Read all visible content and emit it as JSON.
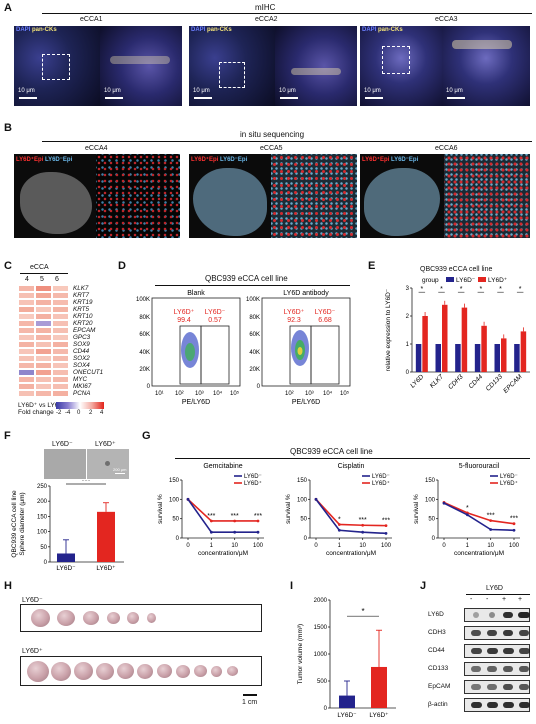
{
  "A": {
    "label": "A",
    "header": "mIHC",
    "samples": [
      "eCCA1",
      "eCCA2",
      "eCCA3"
    ],
    "stain_dapi": "DAPI",
    "stain_marker": "pan-CKs",
    "scalebar": "10 μm"
  },
  "B": {
    "label": "B",
    "header": "in situ sequencing",
    "samples": [
      "eCCA4",
      "eCCA5",
      "eCCA6"
    ],
    "legend_pos": "LY6D⁺Epi",
    "legend_neg": "LY6D⁻Epi"
  },
  "C": {
    "label": "C",
    "header": "eCCA",
    "cols": [
      "4",
      "5",
      "6"
    ],
    "genes": [
      "KLK7",
      "KRT7",
      "KRT19",
      "KRT5",
      "KRT10",
      "KRT20",
      "EPCAM",
      "GPC3",
      "SOX9",
      "CD44",
      "SOX2",
      "SOX4",
      "ONECUT1",
      "MYC",
      "MKI67",
      "PCNA"
    ],
    "legend_title": "LY6D⁺ vs LY6D⁻",
    "legend_subtitle": "Fold change",
    "legend_ticks": [
      "-2",
      "-4",
      "0",
      "2",
      "4"
    ]
  },
  "D": {
    "label": "D",
    "header": "QBC939 eCCA cell line",
    "panels": [
      {
        "title": "Blank",
        "pos_label": "LY6D⁺",
        "neg_label": "LY6D⁻",
        "pos_pct": "99.4",
        "neg_pct": "0.57"
      },
      {
        "title": "LY6D antibody",
        "pos_label": "LY6D⁺",
        "neg_label": "LY6D⁻",
        "pos_pct": "92.3",
        "neg_pct": "6.68"
      }
    ],
    "y_ticks": [
      "0",
      "20K",
      "40K",
      "60K",
      "80K",
      "100K"
    ],
    "x_ticks": [
      "10²",
      "10³",
      "10⁴",
      "10⁵"
    ],
    "x_ticks_left": [
      "10¹",
      "10²",
      "10³",
      "10⁴",
      "10⁵"
    ],
    "y_label": "SSC-A",
    "x_label": "PE/LY6D"
  },
  "E": {
    "label": "E",
    "header": "QBC939 eCCA cell line",
    "legend_title": "group",
    "legend_neg": "LY6D⁻",
    "legend_pos": "LY6D⁺",
    "y_label": "relative expression to LY6D⁻",
    "colors": {
      "neg": "#23238c",
      "pos": "#e32620"
    }
  },
  "F": {
    "label": "F",
    "img_left": "LY6D⁻",
    "img_right": "LY6D⁺",
    "sig": "***",
    "y_label_1": "QBC939 eCCA cell line",
    "y_label_2": "Sphere diameter (μm)",
    "scalebar": "200 μm"
  },
  "G": {
    "label": "G",
    "header": "QBC939 eCCA cell line",
    "y_label": "survival %",
    "x_label": "concentration/μM",
    "legend_neg": "LY6D⁻",
    "legend_pos": "LY6D⁺"
  },
  "H": {
    "label": "H",
    "row_neg": "LY6D⁻",
    "row_pos": "LY6D⁺",
    "scalebar": "1 cm"
  },
  "I": {
    "label": "I",
    "y_label": "Tumor volume (mm³)",
    "sig": "*"
  },
  "J": {
    "label": "J",
    "header": "LY6D",
    "lane_signs": [
      "-",
      "-",
      "+",
      "+"
    ],
    "proteins": [
      "LY6D",
      "CDH3",
      "CD44",
      "CD133",
      "EpCAM",
      "β-actin"
    ]
  },
  "chart_data": [
    {
      "id": "E",
      "type": "bar",
      "categories": [
        "LY6D",
        "KLK7",
        "CDH3",
        "CD44",
        "CD133",
        "EPCAM"
      ],
      "series": [
        {
          "name": "LY6D⁻",
          "values": [
            1.0,
            1.0,
            1.0,
            1.0,
            1.0,
            1.0
          ]
        },
        {
          "name": "LY6D⁺",
          "values": [
            2.0,
            2.4,
            2.3,
            1.65,
            1.2,
            1.45
          ]
        }
      ],
      "yticks": [
        "0",
        "1",
        "2",
        "3"
      ],
      "ylim": [
        0,
        3
      ],
      "significance": [
        "*",
        "*",
        "*",
        "*",
        "*",
        "*"
      ]
    },
    {
      "id": "F",
      "type": "bar",
      "categories": [
        "LY6D⁻",
        "LY6D⁺"
      ],
      "values": [
        28,
        165
      ],
      "errors": [
        45,
        30
      ],
      "yticks": [
        "0",
        "50",
        "100",
        "150",
        "200",
        "250"
      ],
      "ylim": [
        0,
        250
      ]
    },
    {
      "id": "G",
      "type": "line",
      "panels": [
        {
          "title": "Gemcitabine",
          "x": [
            "0",
            "1",
            "10",
            "100"
          ],
          "series": [
            {
              "name": "LY6D⁻",
              "values": [
                100,
                15,
                15,
                15
              ]
            },
            {
              "name": "LY6D⁺",
              "values": [
                100,
                44,
                44,
                44
              ]
            }
          ],
          "sig": [
            "",
            "***",
            "***",
            "***"
          ]
        },
        {
          "title": "Cisplatin",
          "x": [
            "0",
            "1",
            "10",
            "100"
          ],
          "series": [
            {
              "name": "LY6D⁻",
              "values": [
                100,
                20,
                15,
                12
              ]
            },
            {
              "name": "LY6D⁺",
              "values": [
                100,
                35,
                33,
                32
              ]
            }
          ],
          "sig": [
            "",
            "*",
            "***",
            "***"
          ]
        },
        {
          "title": "5-fluorouracil",
          "x": [
            "0",
            "1",
            "10",
            "100"
          ],
          "series": [
            {
              "name": "LY6D⁻",
              "values": [
                90,
                60,
                22,
                20
              ]
            },
            {
              "name": "LY6D⁺",
              "values": [
                92,
                65,
                45,
                37
              ]
            }
          ],
          "sig": [
            "",
            "*",
            "***",
            "***"
          ]
        }
      ],
      "yticks": [
        "0",
        "50",
        "100",
        "150"
      ],
      "ylim": [
        0,
        150
      ]
    },
    {
      "id": "I",
      "type": "bar",
      "categories": [
        "LY6D⁻",
        "LY6D⁺"
      ],
      "values": [
        230,
        760
      ],
      "errors": [
        270,
        680
      ],
      "yticks": [
        "0",
        "500",
        "1000",
        "1500",
        "2000"
      ],
      "ylim": [
        0,
        2000
      ]
    }
  ]
}
